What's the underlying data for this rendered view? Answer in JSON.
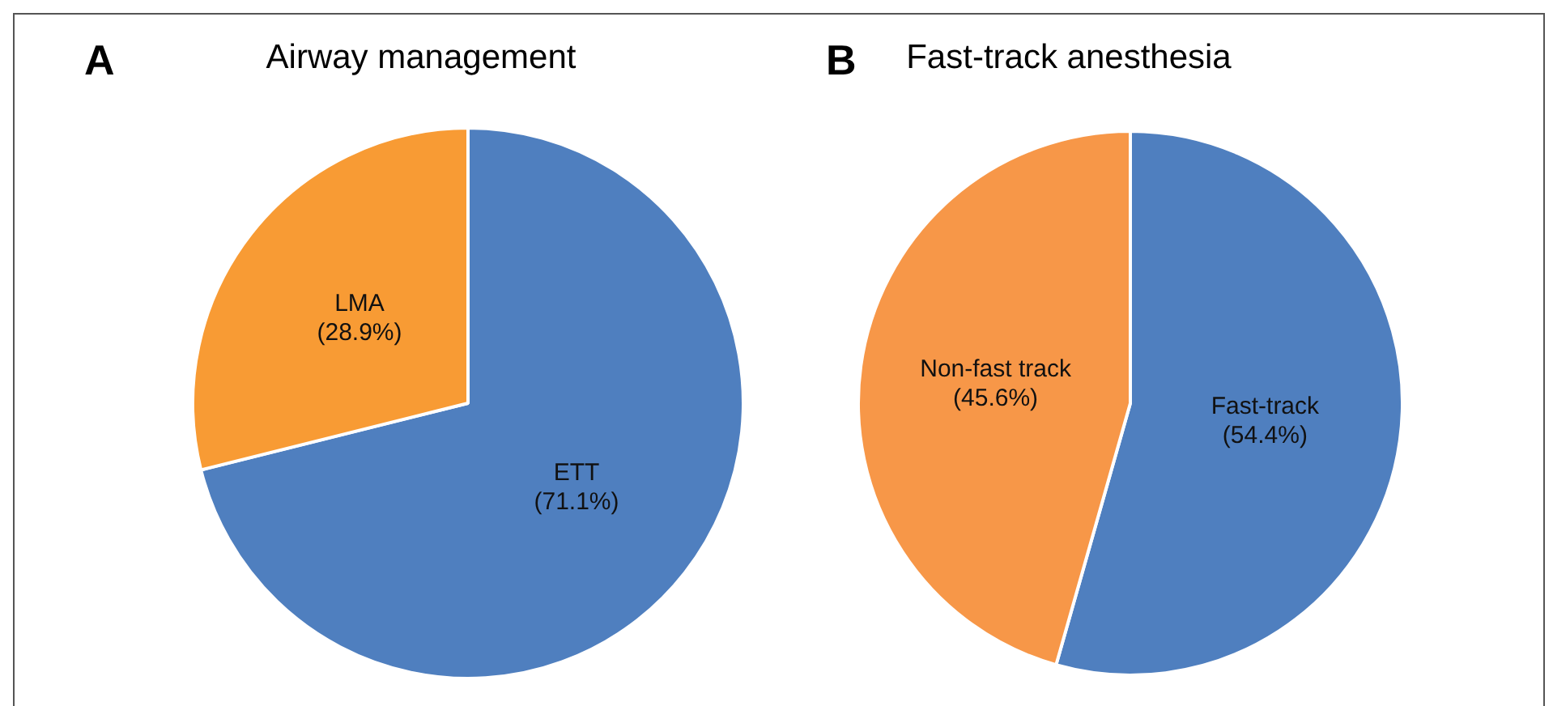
{
  "chart_data": [
    {
      "type": "pie",
      "title": "Airway management",
      "annotations": [
        "A"
      ],
      "categories": [
        "ETT",
        "LMA"
      ],
      "values": [
        71.1,
        28.9
      ],
      "colors": [
        "#4f7fbf",
        "#f89b34"
      ],
      "value_labels": [
        "(71.1%)",
        "(28.9%)"
      ],
      "legend": false
    },
    {
      "type": "pie",
      "title": "Fast-track anesthesia",
      "annotations": [
        "B"
      ],
      "categories": [
        "Fast-track",
        "Non-fast track"
      ],
      "values": [
        54.4,
        45.6
      ],
      "colors": [
        "#4f7fbf",
        "#f79748"
      ],
      "value_labels": [
        "(54.4%)",
        "(45.6%)"
      ],
      "legend": false
    }
  ]
}
